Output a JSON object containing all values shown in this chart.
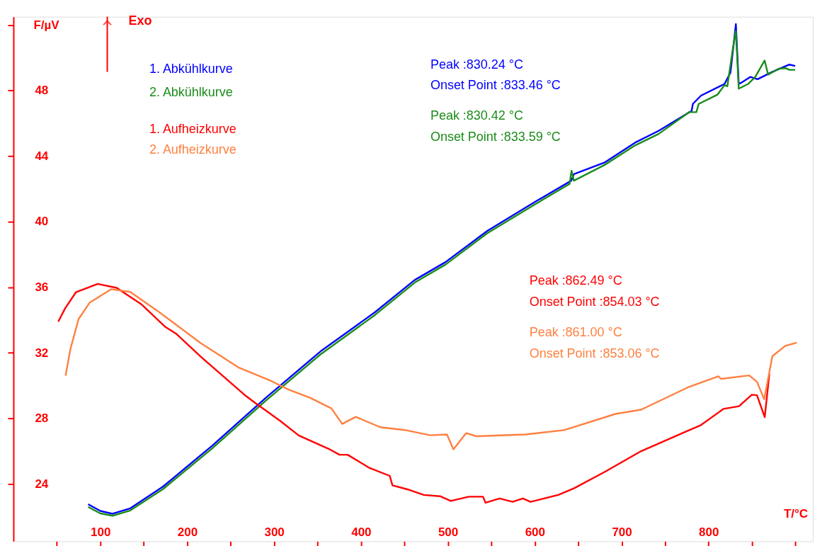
{
  "chart_data": {
    "type": "line",
    "xlabel": "T/°C",
    "ylabel": "F/µV",
    "xlim": [
      0,
      920
    ],
    "ylim": [
      20.5,
      52.5
    ],
    "xticks": [
      {
        "value": 50,
        "label": null
      },
      100,
      {
        "value": 150,
        "label": null
      },
      200,
      {
        "value": 250,
        "label": null
      },
      300,
      {
        "value": 350,
        "label": null
      },
      400,
      {
        "value": 450,
        "label": null
      },
      500,
      {
        "value": 550,
        "label": null
      },
      600,
      {
        "value": 650,
        "label": null
      },
      700,
      {
        "value": 750,
        "label": null
      },
      800,
      {
        "value": 850,
        "label": null
      },
      {
        "value": 900,
        "label": null
      }
    ],
    "yticks": [
      24,
      28,
      32,
      36,
      40,
      44,
      48,
      {
        "value": 52,
        "label": null
      }
    ],
    "grid": false,
    "legend": "top left",
    "marker": "none",
    "line_style": "solid",
    "annotations": [
      "Exo",
      "Peak :830.24 °C",
      "Onset Point :833.46 °C",
      "Peak :830.42 °C",
      "Onset Point :833.59 °C",
      "Peak :862.49 °C",
      "Onset Point :854.03 °C",
      "Peak :861.00 °C",
      "Onset Point :853.06 °C"
    ],
    "series": [
      {
        "name": "1. Abkühlkurve",
        "color": "#0000ff",
        "x": [
          86,
          100,
          114,
          134.5,
          172,
          228.3,
          290.8,
          353.3,
          415.9,
          461.8,
          497.2,
          545.4,
          600,
          642,
          645,
          680,
          715.4,
          742.5,
          780.5,
          781.9,
          791.3,
          818.4,
          825.2,
          831.4,
          834.7,
          837.4,
          848.2,
          856.4,
          872.6,
          892.9,
          899.7
        ],
        "values": [
          22.76,
          22.35,
          22.18,
          22.51,
          23.83,
          26.31,
          29.27,
          32.08,
          34.47,
          36.44,
          37.53,
          39.44,
          41.2,
          42.5,
          42.9,
          43.6,
          44.82,
          45.54,
          46.76,
          47.18,
          47.69,
          48.4,
          49.1,
          52.05,
          48.4,
          48.47,
          48.83,
          48.69,
          49.12,
          49.58,
          49.5
        ]
      },
      {
        "name": "2. Abkühlkurve",
        "color": "#1a8c1a",
        "x": [
          86,
          100,
          114,
          134.5,
          172,
          228.3,
          290.8,
          353.3,
          415.9,
          461.8,
          497.2,
          545.4,
          600,
          640,
          642.3,
          645,
          680,
          715.4,
          742.5,
          777.8,
          785.9,
          788.6,
          810.3,
          818.4,
          821.6,
          827.9,
          831.4,
          834.7,
          845.5,
          853.7,
          864.5,
          868.5,
          880.7,
          888.9,
          892.9,
          899.7
        ],
        "values": [
          22.6,
          22.2,
          22.06,
          22.38,
          23.68,
          26.15,
          29.1,
          31.9,
          34.3,
          36.28,
          37.38,
          39.3,
          41.05,
          42.3,
          43.1,
          42.5,
          43.45,
          44.65,
          45.35,
          46.68,
          46.68,
          47.18,
          47.75,
          48.33,
          48.26,
          50.54,
          51.62,
          48.11,
          48.4,
          48.83,
          49.83,
          48.97,
          49.33,
          49.36,
          49.26,
          49.26
        ]
      },
      {
        "name": "1. Aufheizkurve",
        "color": "#ff0000",
        "x": [
          51.6,
          59.4,
          72,
          97,
          118.9,
          147,
          175,
          187.6,
          215.8,
          240.8,
          265.8,
          278.3,
          306.4,
          328.3,
          362.8,
          375.2,
          384.6,
          409.6,
          433.1,
          436.2,
          453.4,
          472.2,
          490.9,
          503.3,
          524,
          540.4,
          543.3,
          559.5,
          574.4,
          586.3,
          595.1,
          627.6,
          645.4,
          681,
          722.4,
          746.1,
          769.8,
          790.6,
          817.2,
          835,
          849.8,
          855.7,
          864.6,
          869.9
        ],
        "values": [
          33.9,
          34.7,
          35.7,
          36.2,
          35.96,
          34.97,
          33.57,
          33.15,
          31.75,
          30.6,
          29.44,
          28.94,
          27.87,
          26.96,
          26.14,
          25.78,
          25.78,
          24.98,
          24.49,
          23.91,
          23.67,
          23.33,
          23.25,
          22.96,
          23.22,
          23.22,
          22.85,
          23.11,
          22.91,
          23.11,
          22.91,
          23.34,
          23.74,
          24.75,
          26.0,
          26.55,
          27.1,
          27.57,
          28.58,
          28.74,
          29.44,
          29.41,
          28.07,
          30.69
        ]
      },
      {
        "name": "2. Aufheizkurve",
        "color": "#ff8040",
        "x": [
          60,
          65.7,
          75,
          87.6,
          112.6,
          134.5,
          165.7,
          184.5,
          215.8,
          259.5,
          297,
          315.9,
          340.8,
          365.9,
          378.4,
          394,
          422.1,
          450.2,
          479.7,
          498.9,
          506.3,
          521.1,
          532.9,
          589.2,
          633.7,
          692.8,
          722.4,
          775.8,
          811.3,
          814.2,
          846.7,
          855.7,
          864,
          873.4,
          888.2,
          901.5
        ],
        "values": [
          30.6,
          32.25,
          34.06,
          35.05,
          35.88,
          35.71,
          34.56,
          33.82,
          32.58,
          31.09,
          30.27,
          29.77,
          29.27,
          28.61,
          27.66,
          28.09,
          27.46,
          27.29,
          26.97,
          27.02,
          26.11,
          27.1,
          26.91,
          27.02,
          27.28,
          28.27,
          28.53,
          29.88,
          30.57,
          30.41,
          30.62,
          30.23,
          29.16,
          31.79,
          32.42,
          32.62
        ]
      }
    ]
  }
}
